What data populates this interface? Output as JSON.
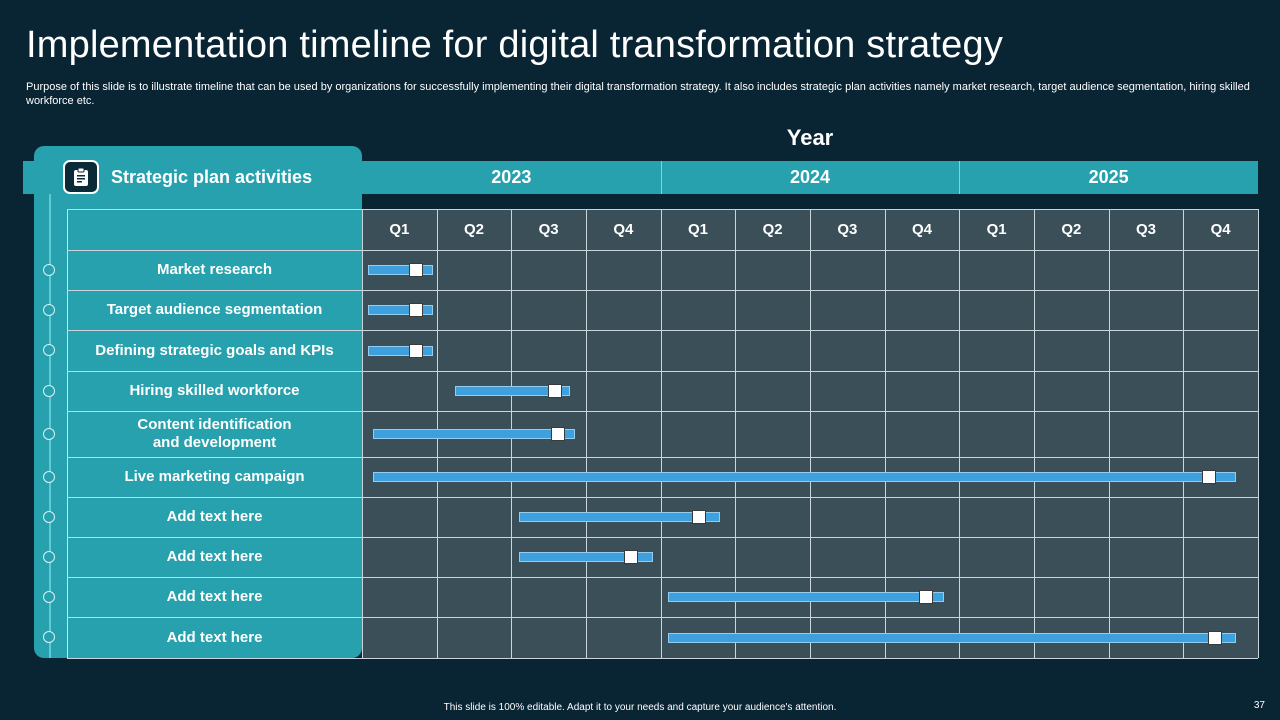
{
  "title": "Implementation timeline for digital transformation strategy",
  "subtitle": "Purpose of this slide is to illustrate timeline that can be used by organizations for successfully implementing their digital transformation strategy. It also includes strategic plan activities namely market research, target audience segmentation, hiring skilled workforce etc.",
  "icon": "clipboard-icon",
  "colors": {
    "background": "#092433",
    "accent": "#27a1ad",
    "grid": "#3b4f59",
    "bar": "#3ea0dc",
    "marker": "#ffffff"
  },
  "footer": {
    "note": "This slide is 100% editable. Adapt it to your needs and capture your audience's attention.",
    "page": "37"
  },
  "chart_data": {
    "type": "gantt",
    "title": "Year",
    "row_header": "Strategic plan activities",
    "years": [
      "2023",
      "2024",
      "2025"
    ],
    "quarters": [
      "Q1",
      "Q2",
      "Q3",
      "Q4",
      "Q1",
      "Q2",
      "Q3",
      "Q4",
      "Q1",
      "Q2",
      "Q3",
      "Q4"
    ],
    "x_unit": "quarter index from start of 2023 (0 = start of Q1 2023, 12 = end of Q4 2025)",
    "tasks": [
      {
        "name": "Market research",
        "start": 0.08,
        "end": 0.95,
        "marker": 0.72
      },
      {
        "name": "Target audience segmentation",
        "start": 0.08,
        "end": 0.95,
        "marker": 0.72
      },
      {
        "name": "Defining strategic goals and KPIs",
        "start": 0.08,
        "end": 0.95,
        "marker": 0.72
      },
      {
        "name": "Hiring skilled workforce",
        "start": 1.25,
        "end": 2.78,
        "marker": 2.58
      },
      {
        "name": "Content identification\nand development",
        "start": 0.15,
        "end": 2.85,
        "marker": 2.63
      },
      {
        "name": "Live marketing campaign",
        "start": 0.15,
        "end": 11.7,
        "marker": 11.35
      },
      {
        "name": "Add text here",
        "start": 2.1,
        "end": 4.8,
        "marker": 4.52
      },
      {
        "name": "Add text here",
        "start": 2.1,
        "end": 3.9,
        "marker": 3.6
      },
      {
        "name": "Add text here",
        "start": 4.1,
        "end": 7.8,
        "marker": 7.55
      },
      {
        "name": "Add text here",
        "start": 4.1,
        "end": 11.7,
        "marker": 11.43
      }
    ]
  }
}
